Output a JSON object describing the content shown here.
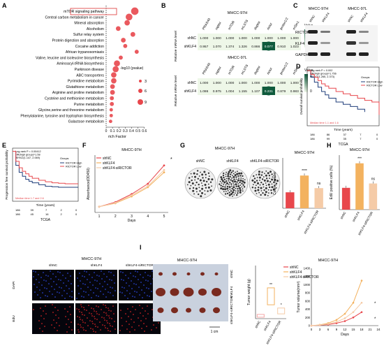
{
  "panel_labels": [
    "A",
    "B",
    "C",
    "D",
    "E",
    "F",
    "G",
    "H",
    "I"
  ],
  "colors": {
    "red": "#e8474c",
    "pink": "#f4a6a6",
    "orange": "#f3b25f",
    "peach": "#f5cba7",
    "navy": "#1f3d7a",
    "green_dark": "#0f5a3c",
    "green_light": "#eef7e8",
    "grey": "#888888"
  },
  "panelA": {
    "xlabel": "rich Factor",
    "ticks": [
      "0",
      "0.1",
      "0.2",
      "0.3",
      "0.4",
      "0.5",
      "0.6"
    ],
    "legend_title": "-log10 (pvalue)",
    "legend_sizes": [
      "3",
      "6",
      "9"
    ],
    "highlight": "mTOR signaling pathway"
  },
  "chart_data": [
    {
      "type": "scatter",
      "title": "",
      "xlabel": "rich Factor",
      "xlim": [
        0,
        0.6
      ],
      "categories": [
        "mTOR signaling pathway",
        "Central carbon metabolism in cancer",
        "Mineral absorption",
        "Alcoholism",
        "Sulfur relay system",
        "Protein digestion and absorption",
        "Cocaine addiction",
        "African trypanosomiasis",
        "Valine, leucine and isoleucine biosynthesis",
        "Aminoacyl-tRNA biosynthesis",
        "Parkinson disease",
        "ABC transporters",
        "Pyrimidine metabolism",
        "Glutathione metabolism",
        "Arginine and proline metabolism",
        "Cysteine and methionine metabolism",
        "Purine metabolism",
        "Glycine,serine and threonine metabolism",
        "Phenylalanine, tyrosine and tryptophan biosynthesis",
        "Galactose metabolism"
      ],
      "x": [
        0.45,
        0.36,
        0.33,
        0.19,
        0.42,
        0.27,
        0.3,
        0.48,
        0.23,
        0.17,
        0.15,
        0.12,
        0.12,
        0.1,
        0.1,
        0.09,
        0.09,
        0.08,
        0.08,
        0.07
      ],
      "size": [
        9,
        8,
        6,
        5,
        5,
        5,
        4,
        4,
        4,
        7,
        7,
        6,
        6,
        5,
        5,
        4,
        4,
        3,
        3,
        3
      ]
    },
    {
      "type": "heatmap",
      "title": "MHCC-97H",
      "ylabel": "Relative mRNA level",
      "columns": [
        "PRAS40",
        "raptor",
        "mTOR",
        "mLST8",
        "deptor",
        "rictor",
        "protor1/2",
        "mSin1"
      ],
      "rows": [
        "shNC",
        "shKLF4"
      ],
      "values": [
        [
          "1.000",
          "1.000",
          "1.000",
          "1.000",
          "1.000",
          "1.000",
          "1.000",
          "1.000"
        ],
        [
          "0.957",
          "1.070",
          "1.374",
          "1.326",
          "0.866",
          "0.077",
          "0.910",
          "1.023"
        ]
      ],
      "legend_title": "Value",
      "legend_ticks": [
        "1",
        "0"
      ]
    },
    {
      "type": "heatmap",
      "title": "MHCC-97L",
      "ylabel": "Relative mRNA level",
      "columns": [
        "PRAS40",
        "raptor",
        "mTOR",
        "mLST8",
        "deptor",
        "rictor",
        "protor1/2",
        "mSin1"
      ],
      "rows": [
        "shNC",
        "shKLF4"
      ],
      "values": [
        [
          "1.000",
          "1.000",
          "1.000",
          "1.000",
          "1.000",
          "1.000",
          "1.000",
          "1.000"
        ],
        [
          "1.086",
          "0.975",
          "1.004",
          "1.155",
          "1.107",
          "0.231",
          "0.879",
          "0.983"
        ]
      ],
      "legend_title": "Value",
      "legend_ticks": [
        "1",
        "0"
      ]
    },
    {
      "type": "line",
      "title": "",
      "xlabel": "Time (years)",
      "ylabel": "Overall survival probability",
      "ylim": [
        0,
        1
      ],
      "xlim": [
        0,
        10
      ],
      "stats": [
        "Log-rank P = 0.002",
        "HR(high group)=1.756",
        "95%CI(1.265, 2.373)"
      ],
      "legend_title": "Groups",
      "series": [
        {
          "name": "RICTOR High",
          "color": "#1f3d7a",
          "x": [
            0,
            0.5,
            1,
            1.5,
            2,
            2.5,
            3,
            4,
            5,
            6,
            7,
            8
          ],
          "y": [
            1,
            0.88,
            0.79,
            0.7,
            0.62,
            0.56,
            0.5,
            0.43,
            0.39,
            0.35,
            0.3,
            0.25
          ]
        },
        {
          "name": "RICTOR Low",
          "color": "#e8474c",
          "x": [
            0,
            0.5,
            1,
            1.5,
            2,
            2.5,
            3,
            4,
            5,
            6,
            7,
            8,
            9,
            10
          ],
          "y": [
            1,
            0.93,
            0.88,
            0.82,
            0.76,
            0.72,
            0.68,
            0.62,
            0.58,
            0.55,
            0.5,
            0.46,
            0.43,
            0.2
          ]
        }
      ],
      "median_note": "Median time 1.1 and 1.6",
      "risk_title": "High groups / Low groups",
      "risk_high": [
        "186",
        "86",
        "37",
        "7",
        "0"
      ],
      "risk_low": [
        "186",
        "99",
        "35",
        "7",
        "0"
      ],
      "footer": "TCGA"
    },
    {
      "type": "line",
      "title": "",
      "xlabel": "Time (years)",
      "ylabel": "Progression free survival probability",
      "ylim": [
        0,
        1
      ],
      "xlim": [
        0,
        10
      ],
      "stats": [
        "Log-rank P = 0.00412",
        "HR(high group)=1.58",
        "95%CI(1.147, 2.069)"
      ],
      "legend_title": "Groups",
      "series": [
        {
          "name": "RICTOR High",
          "color": "#1f3d7a",
          "x": [
            0,
            0.5,
            1,
            1.5,
            2,
            2.5,
            3,
            4,
            5,
            6,
            7,
            8,
            9,
            10
          ],
          "y": [
            1,
            0.72,
            0.58,
            0.5,
            0.44,
            0.4,
            0.37,
            0.33,
            0.3,
            0.29,
            0.28,
            0.28,
            0.28,
            0.28
          ]
        },
        {
          "name": "RICTOR Low",
          "color": "#e8474c",
          "x": [
            0,
            0.5,
            1,
            1.5,
            2,
            2.5,
            3,
            4,
            5,
            6,
            7,
            8,
            9,
            10
          ],
          "y": [
            1,
            0.8,
            0.67,
            0.6,
            0.55,
            0.5,
            0.46,
            0.42,
            0.39,
            0.37,
            0.36,
            0.35,
            0.35,
            0.35
          ]
        }
      ],
      "median_note": "Median time 1.7 and 2.6",
      "risk_high": [
        "186",
        "39",
        "7",
        "2",
        "0"
      ],
      "risk_low": [
        "186",
        "45",
        "16",
        "2",
        "0"
      ],
      "footer": "TCGA"
    },
    {
      "type": "line",
      "title": "MHCC-97H",
      "xlabel": "Days",
      "ylabel": "Absorbance(OD450)",
      "ylim": [
        0,
        2.5
      ],
      "xlim": [
        1,
        5
      ],
      "series": [
        {
          "name": "shNC",
          "color": "#e8474c",
          "x": [
            1,
            2,
            3,
            4,
            5
          ],
          "y": [
            0.25,
            0.45,
            0.8,
            1.25,
            2.05
          ]
        },
        {
          "name": "shKLF4",
          "color": "#f3b25f",
          "x": [
            1,
            2,
            3,
            4,
            5
          ],
          "y": [
            0.25,
            0.4,
            0.7,
            1.1,
            1.75
          ]
        },
        {
          "name": "shKLF4-siRICTOR",
          "color": "#f5cba7",
          "x": [
            1,
            2,
            3,
            4,
            5
          ],
          "y": [
            0.25,
            0.42,
            0.75,
            1.15,
            1.85
          ]
        }
      ],
      "annotation": "*"
    },
    {
      "type": "bar",
      "title": "MHCC-97H",
      "ylabel": "Colony number",
      "ylim": [
        0,
        120
      ],
      "categories": [
        "shNC",
        "shKLF4",
        "shKLF4-siRICTOR"
      ],
      "values": [
        38,
        78,
        48
      ],
      "colors": [
        "#e8474c",
        "#f3b25f",
        "#f5cba7"
      ],
      "significance": [
        "",
        "****",
        "ns"
      ]
    },
    {
      "type": "bar",
      "title": "MHCC-97H",
      "ylabel": "EdU positive cells (%)",
      "ylim": [
        0,
        100
      ],
      "categories": [
        "shNC",
        "shKLF4",
        "shKLF4-siRICTOR"
      ],
      "values": [
        40,
        85,
        48
      ],
      "colors": [
        "#e8474c",
        "#f3b25f",
        "#f5cba7"
      ],
      "significance": [
        "",
        "***",
        "ns"
      ]
    },
    {
      "type": "box",
      "title": "",
      "ylabel": "Tumor weight (g)",
      "categories": [
        "shNC",
        "shKLF4",
        "shKLF4-siRICTOR"
      ],
      "values": [
        0.08,
        0.58,
        0.2
      ],
      "significance": [
        "",
        "**",
        "*"
      ]
    },
    {
      "type": "line",
      "title": "MHCC-97H",
      "xlabel": "Days",
      "ylabel": "Tumor volume(mm³)",
      "ylim": [
        0,
        1400
      ],
      "xlim": [
        0,
        24
      ],
      "series": [
        {
          "name": "shNC",
          "color": "#e8474c",
          "x": [
            0,
            3,
            6,
            9,
            12,
            15,
            18
          ],
          "y": [
            0,
            10,
            25,
            60,
            110,
            200,
            330
          ]
        },
        {
          "name": "shKLF4",
          "color": "#f3b25f",
          "x": [
            0,
            3,
            6,
            9,
            12,
            15,
            18
          ],
          "y": [
            0,
            20,
            60,
            140,
            290,
            560,
            1100
          ]
        },
        {
          "name": "shKLF4-siRICTOR",
          "color": "#f5cba7",
          "x": [
            0,
            3,
            6,
            9,
            12,
            15,
            18
          ],
          "y": [
            0,
            15,
            40,
            90,
            180,
            330,
            560
          ]
        }
      ],
      "xticks": [
        "0",
        "3",
        "6",
        "9",
        "12",
        "15",
        "18",
        "21",
        "24"
      ],
      "yticks": [
        "0",
        "200",
        "400",
        "600",
        "800",
        "1000",
        "1200",
        "1400"
      ]
    }
  ],
  "panelC": {
    "title_left": "MHCC-97H",
    "title_right": "MHCC-97L",
    "lanes": [
      "shNC",
      "shKLF4",
      "shNC",
      "shKLF4"
    ],
    "rows": [
      "RICTOR",
      "KLF4",
      "GAPDH"
    ]
  },
  "panelG": {
    "title": "MHCC-97H",
    "plates": [
      "shNC",
      "shKLF4",
      "shKLF4-siRICTOR"
    ]
  },
  "microscopy": {
    "title": "MHCC-97H",
    "columns": [
      "shNC",
      "shKLF4",
      "shKLF4-siRICTOR"
    ],
    "rows": [
      "DAPI",
      "EdU"
    ]
  },
  "panelI": {
    "title": "MHCC-97H",
    "rows": [
      "shNC",
      "shKLF4",
      "shKLF4-siRICTOR"
    ],
    "scale": "1 cm"
  }
}
